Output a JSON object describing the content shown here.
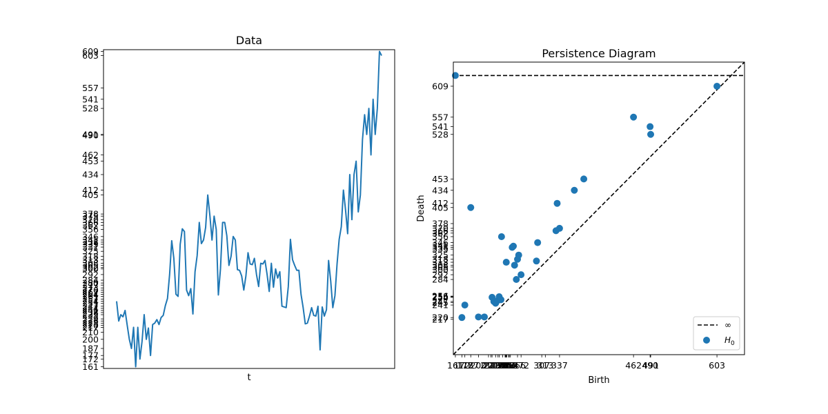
{
  "chart_data": [
    {
      "type": "line",
      "title": "Data",
      "xlabel": "t",
      "ylabel": "",
      "x_ticks_shown": false,
      "ylim": [
        158.6,
        611.4
      ],
      "ytick_labels": [
        161,
        172,
        177,
        187,
        200,
        210,
        217,
        220,
        223,
        226,
        229,
        235,
        238,
        241,
        244,
        247,
        251,
        254,
        257,
        261,
        264,
        267,
        270,
        273,
        277,
        280,
        284,
        292,
        300,
        302,
        305,
        308,
        313,
        318,
        325,
        331,
        335,
        338,
        341,
        346,
        356,
        362,
        366,
        370,
        375,
        378,
        405,
        412,
        434,
        453,
        462,
        490,
        491,
        528,
        541,
        557,
        603,
        609
      ],
      "color": "#1f77b4",
      "series": [
        {
          "values": [
            254,
            226,
            235,
            232,
            241,
            220,
            200,
            187,
            217,
            161,
            217,
            172,
            197,
            235,
            200,
            216,
            177,
            221,
            223,
            228,
            221,
            231,
            234,
            248,
            258,
            292,
            340,
            315,
            264,
            261,
            335,
            357,
            353,
            270,
            262,
            272,
            236,
            296,
            319,
            366,
            336,
            341,
            359,
            405,
            376,
            341,
            375,
            356,
            263,
            300,
            366,
            366,
            347,
            305,
            318,
            346,
            341,
            299,
            298,
            290,
            270,
            290,
            323,
            307,
            306,
            315,
            292,
            275,
            308,
            307,
            312,
            292,
            268,
            308,
            274,
            300,
            287,
            296,
            247,
            246,
            245,
            275,
            342,
            313,
            305,
            298,
            298,
            264,
            245,
            222,
            223,
            233,
            245,
            234,
            233,
            247,
            185,
            246,
            233,
            242,
            312,
            283,
            245,
            262,
            307,
            342,
            360,
            412,
            384,
            350,
            434,
            370,
            434,
            453,
            381,
            405,
            484,
            519,
            491,
            528,
            462,
            541,
            491,
            528,
            609,
            603
          ]
        }
      ]
    },
    {
      "type": "scatter",
      "title": "Persistence Diagram",
      "xlabel": "Birth",
      "ylabel": "Death",
      "xlim": [
        157.55,
        649.55
      ],
      "ylim": [
        157.55,
        649.55
      ],
      "xtick_labels": [
        161,
        172,
        177,
        187,
        200,
        217,
        221,
        223,
        229,
        233,
        235,
        241,
        245,
        246,
        247,
        248,
        251,
        252,
        254,
        266,
        272,
        307,
        313,
        337,
        462,
        490,
        491,
        603
      ],
      "ytick_labels": [
        217,
        220,
        241,
        245,
        247,
        254,
        255,
        256,
        284,
        292,
        300,
        305,
        308,
        313,
        318,
        325,
        335,
        338,
        341,
        346,
        356,
        362,
        366,
        370,
        378,
        405,
        412,
        434,
        453,
        528,
        541,
        557,
        609
      ],
      "infinity_level": 627.0,
      "legend": [
        "∞",
        "H0"
      ],
      "legend_location": "lower right",
      "color": "#1f77b4",
      "points": [
        {
          "birth": 161,
          "death": 627
        },
        {
          "birth": 172,
          "death": 220
        },
        {
          "birth": 177,
          "death": 241
        },
        {
          "birth": 187,
          "death": 405
        },
        {
          "birth": 200,
          "death": 221
        },
        {
          "birth": 210,
          "death": 221
        },
        {
          "birth": 223,
          "death": 254
        },
        {
          "birth": 226,
          "death": 247
        },
        {
          "birth": 229,
          "death": 244
        },
        {
          "birth": 233,
          "death": 249
        },
        {
          "birth": 235,
          "death": 255
        },
        {
          "birth": 238,
          "death": 250
        },
        {
          "birth": 239,
          "death": 356
        },
        {
          "birth": 247,
          "death": 313
        },
        {
          "birth": 257,
          "death": 338
        },
        {
          "birth": 259,
          "death": 340
        },
        {
          "birth": 261,
          "death": 308
        },
        {
          "birth": 264,
          "death": 284
        },
        {
          "birth": 266,
          "death": 318
        },
        {
          "birth": 268,
          "death": 325
        },
        {
          "birth": 272,
          "death": 292
        },
        {
          "birth": 298,
          "death": 315
        },
        {
          "birth": 300,
          "death": 346
        },
        {
          "birth": 331,
          "death": 366
        },
        {
          "birth": 333,
          "death": 412
        },
        {
          "birth": 337,
          "death": 370
        },
        {
          "birth": 362,
          "death": 434
        },
        {
          "birth": 378,
          "death": 453
        },
        {
          "birth": 462,
          "death": 557
        },
        {
          "birth": 490,
          "death": 541
        },
        {
          "birth": 491,
          "death": 528
        },
        {
          "birth": 603,
          "death": 609
        }
      ]
    }
  ]
}
